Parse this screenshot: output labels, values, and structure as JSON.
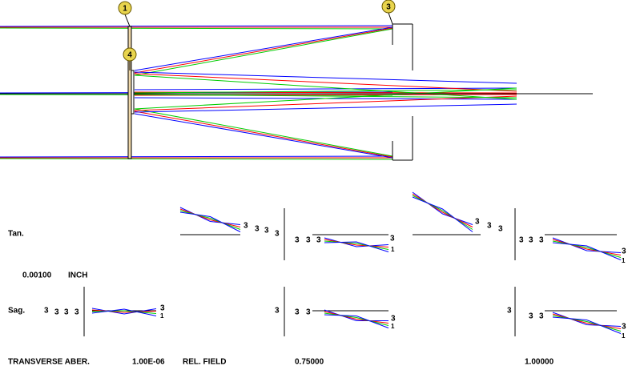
{
  "callouts": [
    "1",
    "3",
    "4"
  ],
  "plot_mark": "3",
  "ray_mark": "1",
  "row_labels": {
    "tan": "Tan.",
    "sag": "Sag."
  },
  "scale": {
    "value": "0.00100",
    "unit": "INCH"
  },
  "footer": {
    "title": "TRANSVERSE ABER.",
    "wavelength": "1.00E-06",
    "field_label": "REL. FIELD",
    "fields": [
      "0.75000",
      "1.00000"
    ]
  }
}
